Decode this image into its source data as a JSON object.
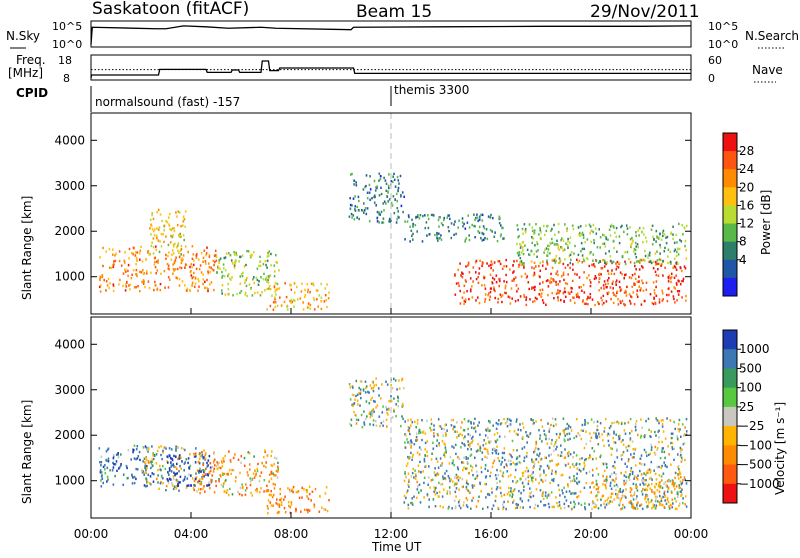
{
  "header": {
    "station": "Saskatoon (fitACF)",
    "beam": "Beam 15",
    "date": "29/Nov/2011"
  },
  "strips": {
    "nsky_label": "N.Sky",
    "nsky_top": "10^5",
    "nsky_bottom": "10^0",
    "nsearch_label": "N.Search",
    "nsearch_top": "10^5",
    "nsearch_bottom": "10^0",
    "freq_label_1": "Freq.",
    "freq_label_2": "[MHz]",
    "freq_top": "18",
    "freq_bottom": "8",
    "nave_label": "Nave",
    "nave_top": "60",
    "nave_bottom": "0",
    "cpid_label": "CPID",
    "cpid_1": "normalsound (fast) -157",
    "cpid_2": "themis 3300"
  },
  "colorbars": {
    "power": {
      "label": "Power [dB]",
      "ticks": [
        "28",
        "24",
        "20",
        "16",
        "12",
        "8",
        "4"
      ],
      "colors": [
        "#ee1111",
        "#ff5511",
        "#ff8c00",
        "#ffc010",
        "#b8dc30",
        "#58b848",
        "#2e7f6a",
        "#1f56a8",
        "#1e1ef0"
      ]
    },
    "velocity": {
      "label": "Velocity [m s⁻¹]",
      "ticks": [
        "1000",
        "500",
        "100",
        "25",
        "−25",
        "−100",
        "−500",
        "−1000"
      ],
      "colors": [
        "#1e3cb4",
        "#3c78b4",
        "#389a5c",
        "#58c840",
        "#c8c8c0",
        "#ffb400",
        "#ff8c00",
        "#ff5a10",
        "#ee1111"
      ]
    }
  },
  "chart_data": [
    {
      "type": "line",
      "panel": "N.Sky / N.Search",
      "x_unit": "hours UT",
      "x": [
        0,
        0.05,
        2.6,
        3.0,
        3.7,
        4.6,
        5.5,
        6.8,
        7.4,
        10.4,
        10.5,
        14.0,
        18.0,
        22.0,
        24.0
      ],
      "series": [
        {
          "name": "N.Sky",
          "values": [
            0.3,
            3.9,
            3.6,
            3.6,
            4.2,
            4.0,
            3.7,
            3.9,
            3.7,
            3.4,
            3.9,
            4.0,
            4.1,
            4.1,
            4.2
          ]
        }
      ],
      "ylim": [
        0,
        5
      ]
    },
    {
      "type": "line",
      "panel": "Freq. / Nave",
      "x_unit": "hours UT",
      "x": [
        0,
        0.02,
        2.7,
        2.75,
        4.6,
        4.65,
        5.6,
        5.65,
        5.9,
        5.95,
        6.8,
        6.85,
        7.1,
        7.15,
        7.5,
        7.55,
        10.5,
        10.55,
        24
      ],
      "series": [
        {
          "name": "Freq.",
          "values": [
            8,
            9.5,
            9.5,
            12.3,
            12.3,
            10.8,
            10.8,
            12.0,
            12.0,
            10.8,
            10.8,
            16.5,
            16.5,
            11.7,
            11.7,
            13.0,
            13.0,
            10.3,
            10.3
          ]
        },
        {
          "name": "Nave",
          "values": [
            25,
            25,
            25,
            25,
            25,
            25,
            25,
            25,
            25,
            25,
            25,
            25,
            25,
            25,
            25,
            25,
            25,
            25,
            25
          ]
        }
      ],
      "ylim": [
        8,
        18
      ]
    },
    {
      "type": "heatmap",
      "panel": "Power",
      "xlabel": "",
      "ylabel": "Slant Range [km]",
      "x_unit": "hours UT",
      "xlim": [
        0,
        24
      ],
      "ylim": [
        180,
        4600
      ],
      "yticks": [
        1000,
        2000,
        3000,
        4000
      ],
      "clim": [
        0,
        30
      ],
      "scatter_bands": [
        {
          "t": [
            0.3,
            5.0
          ],
          "r": [
            700,
            1700
          ],
          "value": 22
        },
        {
          "t": [
            2.3,
            3.8
          ],
          "r": [
            1500,
            2500
          ],
          "value": 18
        },
        {
          "t": [
            5.0,
            7.5
          ],
          "r": [
            600,
            1600
          ],
          "value": 14
        },
        {
          "t": [
            7.0,
            9.5
          ],
          "r": [
            300,
            900
          ],
          "value": 20
        },
        {
          "t": [
            10.3,
            12.5
          ],
          "r": [
            2200,
            3300
          ],
          "value": 8
        },
        {
          "t": [
            12.5,
            16.5
          ],
          "r": [
            1800,
            2400
          ],
          "value": 8
        },
        {
          "t": [
            14.5,
            23.8
          ],
          "r": [
            400,
            1400
          ],
          "value": 26
        },
        {
          "t": [
            17.0,
            23.8
          ],
          "r": [
            1300,
            2200
          ],
          "value": 12
        }
      ]
    },
    {
      "type": "heatmap",
      "panel": "Velocity",
      "xlabel": "Time UT",
      "ylabel": "Slant Range [km]",
      "x_unit": "hours UT",
      "xlim": [
        0,
        24
      ],
      "ylim": [
        180,
        4600
      ],
      "xticks": [
        "00:00",
        "04:00",
        "08:00",
        "12:00",
        "16:00",
        "20:00",
        "00:00"
      ],
      "yticks": [
        1000,
        2000,
        3000,
        4000
      ],
      "clim": [
        -1000,
        1000
      ],
      "scatter_bands": [
        {
          "t": [
            0.3,
            2.5
          ],
          "r": [
            900,
            1800
          ],
          "value": 300
        },
        {
          "t": [
            2.0,
            4.5
          ],
          "r": [
            800,
            1800
          ],
          "value": 0
        },
        {
          "t": [
            3.0,
            4.8
          ],
          "r": [
            900,
            1600
          ],
          "value": 800
        },
        {
          "t": [
            4.0,
            7.5
          ],
          "r": [
            700,
            1700
          ],
          "value": -300
        },
        {
          "t": [
            7.0,
            9.5
          ],
          "r": [
            300,
            900
          ],
          "value": -400
        },
        {
          "t": [
            10.3,
            12.5
          ],
          "r": [
            2200,
            3300
          ],
          "value": 0
        },
        {
          "t": [
            12.5,
            23.8
          ],
          "r": [
            400,
            2400
          ],
          "value": 0
        },
        {
          "t": [
            20.0,
            23.8
          ],
          "r": [
            400,
            1200
          ],
          "value": -150
        }
      ]
    }
  ]
}
